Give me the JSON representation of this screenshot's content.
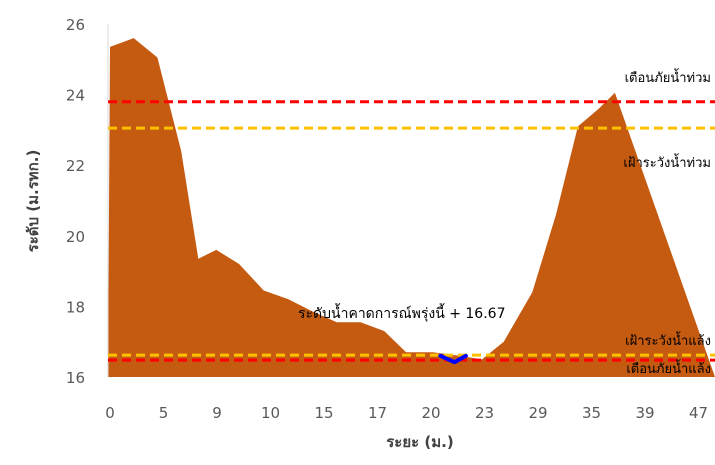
{
  "chart_data": {
    "type": "area",
    "title": "",
    "xlabel": "ระยะ (ม.)",
    "ylabel": "ระดับ (ม.รทก.)",
    "ylim": [
      16,
      26
    ],
    "yticks": [
      "16",
      "18",
      "20",
      "22",
      "24",
      "26"
    ],
    "xticks": [
      "0",
      "5",
      "9",
      "10",
      "15",
      "17",
      "20",
      "23",
      "29",
      "35",
      "39",
      "47"
    ],
    "xlim": [
      0,
      48
    ],
    "grid": false,
    "legend": "none",
    "colors": {
      "ground": "#c55a11",
      "water": "#0000ff",
      "warning_flood": "#ff0000",
      "watch_flood": "#ffc000",
      "watch_drought": "#ffc000",
      "warning_drought": "#ff0000"
    },
    "ground_profile": [
      {
        "x": 0,
        "y": 25.35
      },
      {
        "x": 2.5,
        "y": 25.6
      },
      {
        "x": 5,
        "y": 25.05
      },
      {
        "x": 7.5,
        "y": 22.4
      },
      {
        "x": 9.3,
        "y": 19.35
      },
      {
        "x": 11.2,
        "y": 19.6
      },
      {
        "x": 13.6,
        "y": 19.2
      },
      {
        "x": 16.2,
        "y": 18.45
      },
      {
        "x": 18.8,
        "y": 18.2
      },
      {
        "x": 21.4,
        "y": 17.85
      },
      {
        "x": 23.9,
        "y": 17.55
      },
      {
        "x": 26.4,
        "y": 17.55
      },
      {
        "x": 28.9,
        "y": 17.3
      },
      {
        "x": 31.2,
        "y": 16.7
      },
      {
        "x": 34,
        "y": 16.7
      },
      {
        "x": 36.8,
        "y": 16.6
      },
      {
        "x": 39.2,
        "y": 16.5
      },
      {
        "x": 41.5,
        "y": 17.0
      },
      {
        "x": 44.5,
        "y": 18.4
      },
      {
        "x": 47,
        "y": 20.6
      },
      {
        "x": 49.3,
        "y": 23.1
      },
      {
        "x": 51.5,
        "y": 23.6
      },
      {
        "x": 53.2,
        "y": 24.05
      }
    ],
    "water_level": [
      {
        "x": 34.8,
        "y": 16.6
      },
      {
        "x": 36.3,
        "y": 16.42
      },
      {
        "x": 37.5,
        "y": 16.6
      }
    ],
    "reference_lines": [
      {
        "key": "warning_flood",
        "label": "เตือนภัยน้ำท่วม",
        "y": 23.8
      },
      {
        "key": "watch_flood",
        "label": "เฝ้าระวังน้ำท่วม",
        "y": 23.05
      },
      {
        "key": "watch_drought",
        "label": "เฝ้าระวังน้ำแล้ง",
        "y": 16.62
      },
      {
        "key": "warning_drought",
        "label": "เตือนภัยน้ำแล้ง",
        "y": 16.48
      }
    ],
    "forecast_label": "ระดับน้ำคาดการณ์พรุ่งนี้ + 16.67",
    "forecast_value": 16.67
  }
}
